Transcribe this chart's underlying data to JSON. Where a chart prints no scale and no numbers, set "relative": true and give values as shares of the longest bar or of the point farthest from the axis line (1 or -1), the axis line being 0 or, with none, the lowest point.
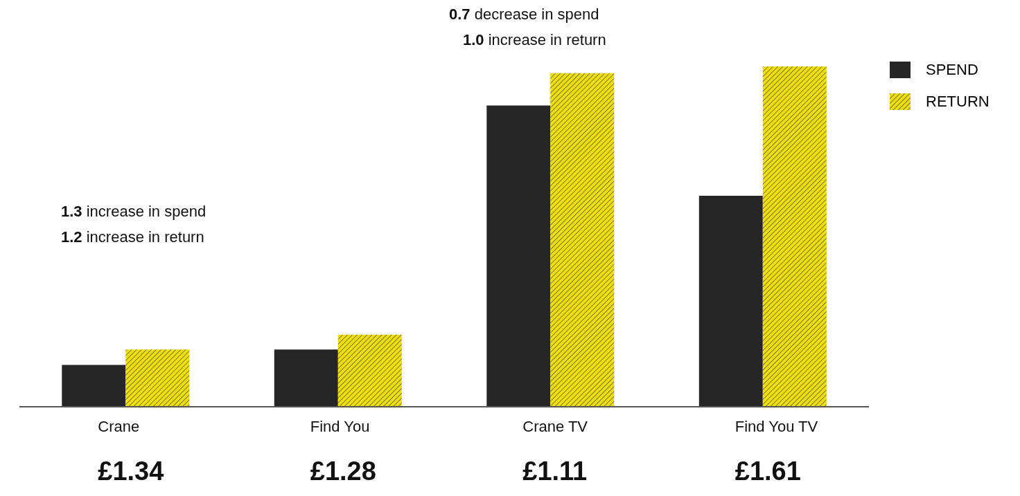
{
  "chart_data": {
    "type": "bar",
    "relative": true,
    "categories": [
      "Crane",
      "Find You",
      "Crane TV",
      "Find You TV"
    ],
    "series": [
      {
        "name": "SPEND",
        "color": "#262626",
        "values": [
          0.123,
          0.168,
          0.885,
          0.62
        ]
      },
      {
        "name": "RETURN",
        "color": "#f0e000",
        "values": [
          0.168,
          0.212,
          0.98,
          1
        ]
      }
    ],
    "legend": "top right",
    "grid": false,
    "annotations": [
      "1.3 increase in spend",
      "1.2 increase in return",
      "0.7 decrease in spend",
      "1.0 increase in return",
      "£1.34",
      "£1.28",
      "£1.11",
      "£1.61"
    ]
  }
}
